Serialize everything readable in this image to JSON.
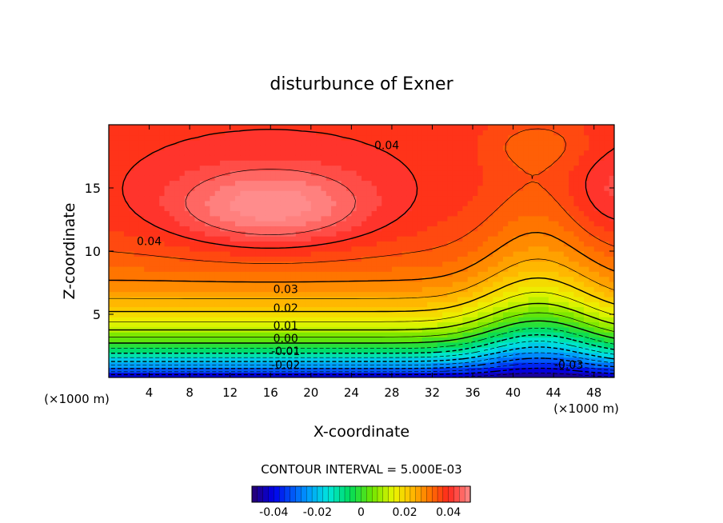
{
  "chart_data": {
    "type": "heatmap",
    "title": "disturbunce of Exner",
    "xlabel": "X-coordinate",
    "ylabel": "Z-coordinate",
    "x_unit": "(×1000 m)",
    "z_unit": "(×1000 m)",
    "xlim": [
      0,
      50
    ],
    "ylim": [
      0,
      20
    ],
    "x_ticks": [
      "4",
      "8",
      "12",
      "16",
      "20",
      "24",
      "28",
      "32",
      "36",
      "40",
      "44",
      "48"
    ],
    "y_ticks": [
      "5",
      "10",
      "15"
    ],
    "contour_interval_text": "CONTOUR INTERVAL = 5.000E-03",
    "contour_interval": 0.005,
    "contour_labels": [
      {
        "text": "0.04",
        "x": 27.5,
        "z": 18.4
      },
      {
        "text": "0.04",
        "x": 4.0,
        "z": 10.8
      },
      {
        "text": "0.03",
        "x": 17.5,
        "z": 7.0
      },
      {
        "text": "0.02",
        "x": 17.5,
        "z": 5.5
      },
      {
        "text": "0.01",
        "x": 17.5,
        "z": 4.1
      },
      {
        "text": "0.00",
        "x": 17.5,
        "z": 3.1
      },
      {
        "text": "-0.01",
        "x": 17.5,
        "z": 2.1
      },
      {
        "text": "-0.02",
        "x": 17.5,
        "z": 1.0
      },
      {
        "text": "-0.03",
        "x": 45.5,
        "z": 1.0
      }
    ],
    "field": {
      "min": -0.045,
      "max": 0.05,
      "description_values": {
        "surface": -0.045,
        "top_region": 0.04,
        "left_center_max": 0.05,
        "right_basin_center_x": 42.5,
        "left_max_center": [
          16,
          13.5
        ]
      }
    },
    "colorbar": {
      "ticks": [
        "-0.04",
        "-0.02",
        "0",
        "0.02",
        "0.04"
      ],
      "tick_values": [
        -0.04,
        -0.02,
        0,
        0.02,
        0.04
      ],
      "range": [
        -0.05,
        0.05
      ]
    }
  }
}
